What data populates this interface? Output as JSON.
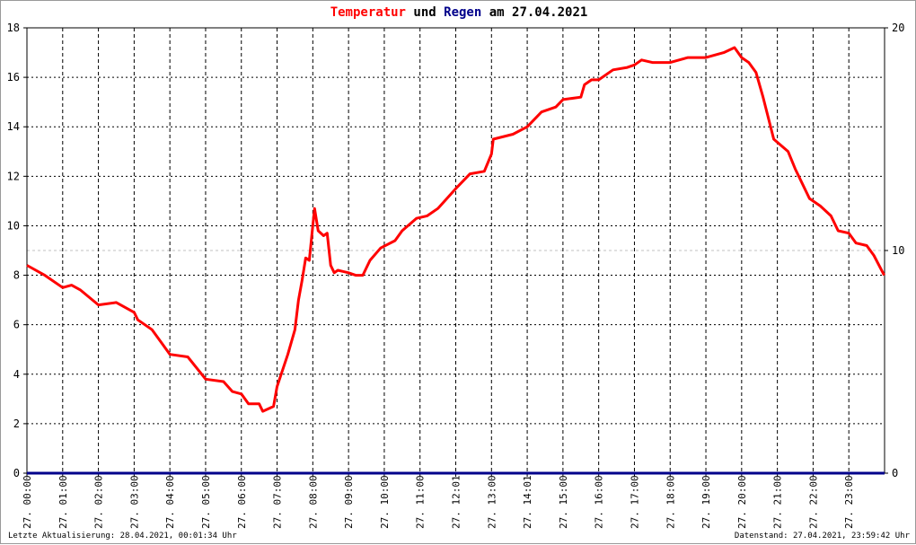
{
  "title": {
    "part1": "Temperatur",
    "part2": " und ",
    "part3": "Regen",
    "part4": " am 27.04.2021"
  },
  "footer": {
    "left": "Letzte Aktualisierung: 28.04.2021, 00:01:34 Uhr",
    "right": "Datenstand: 27.04.2021, 23:59:42 Uhr"
  },
  "colors": {
    "temperature": "#ff0000",
    "rain": "#00008b",
    "grid": "#000000",
    "ref_line": "#c0c0c0"
  },
  "chart_data": {
    "type": "line",
    "title": "Temperatur und Regen am 27.04.2021",
    "grid": true,
    "x_range_hours": [
      0,
      24
    ],
    "x_tick_labels": [
      "27. 00:00",
      "27. 01:00",
      "27. 02:00",
      "27. 03:00",
      "27. 04:00",
      "27. 05:00",
      "27. 06:00",
      "27. 07:00",
      "27. 08:00",
      "27. 09:00",
      "27. 10:00",
      "27. 11:00",
      "27. 12:01",
      "27. 13:00",
      "27. 14:01",
      "27. 15:00",
      "27. 16:00",
      "27. 17:00",
      "27. 18:00",
      "27. 19:00",
      "27. 20:00",
      "27. 21:00",
      "27. 22:00",
      "27. 23:00"
    ],
    "y_left": {
      "range": [
        0,
        18
      ],
      "ticks": [
        0,
        2,
        4,
        6,
        8,
        10,
        12,
        14,
        16,
        18
      ]
    },
    "y_right": {
      "range": [
        0,
        20
      ],
      "ticks": [
        0,
        10,
        20
      ]
    },
    "series": [
      {
        "name": "Temperatur",
        "axis": "left",
        "x": [
          0,
          0.5,
          1.0,
          1.25,
          1.5,
          2.0,
          2.5,
          3.0,
          3.1,
          3.5,
          4.0,
          4.5,
          5.0,
          5.5,
          5.75,
          6.0,
          6.2,
          6.5,
          6.6,
          6.9,
          7.0,
          7.3,
          7.5,
          7.6,
          7.7,
          7.8,
          7.9,
          8.0,
          8.05,
          8.15,
          8.3,
          8.4,
          8.5,
          8.6,
          8.7,
          9.0,
          9.2,
          9.4,
          9.6,
          9.9,
          10.3,
          10.5,
          10.9,
          11.2,
          11.5,
          12.0,
          12.4,
          12.8,
          13.0,
          13.05,
          13.6,
          14.0,
          14.4,
          14.8,
          15.0,
          15.5,
          15.6,
          15.8,
          16.0,
          16.4,
          16.8,
          17.0,
          17.2,
          17.5,
          18.0,
          18.5,
          19.0,
          19.5,
          19.8,
          20.0,
          20.2,
          20.4,
          20.6,
          20.9,
          21.3,
          21.5,
          21.9,
          22.2,
          22.5,
          22.7,
          23.0,
          23.2,
          23.5,
          23.7,
          23.99
        ],
        "values": [
          8.4,
          8.0,
          7.5,
          7.6,
          7.4,
          6.8,
          6.9,
          6.5,
          6.2,
          5.8,
          4.8,
          4.7,
          3.8,
          3.7,
          3.3,
          3.2,
          2.8,
          2.8,
          2.5,
          2.7,
          3.5,
          4.8,
          5.8,
          7.0,
          7.8,
          8.7,
          8.6,
          10.0,
          10.7,
          9.8,
          9.6,
          9.7,
          8.4,
          8.1,
          8.2,
          8.1,
          8.0,
          8.0,
          8.6,
          9.1,
          9.4,
          9.8,
          10.3,
          10.4,
          10.7,
          11.5,
          12.1,
          12.2,
          12.9,
          13.5,
          13.7,
          14.0,
          14.6,
          14.8,
          15.1,
          15.2,
          15.7,
          15.9,
          15.9,
          16.3,
          16.4,
          16.5,
          16.7,
          16.6,
          16.6,
          16.8,
          16.8,
          17.0,
          17.2,
          16.8,
          16.6,
          16.2,
          15.2,
          13.5,
          13.0,
          12.3,
          11.1,
          10.8,
          10.4,
          9.8,
          9.7,
          9.3,
          9.2,
          8.8,
          8.0
        ]
      },
      {
        "name": "Regen",
        "axis": "right",
        "x": [
          0,
          24
        ],
        "values": [
          0,
          0
        ]
      }
    ]
  }
}
